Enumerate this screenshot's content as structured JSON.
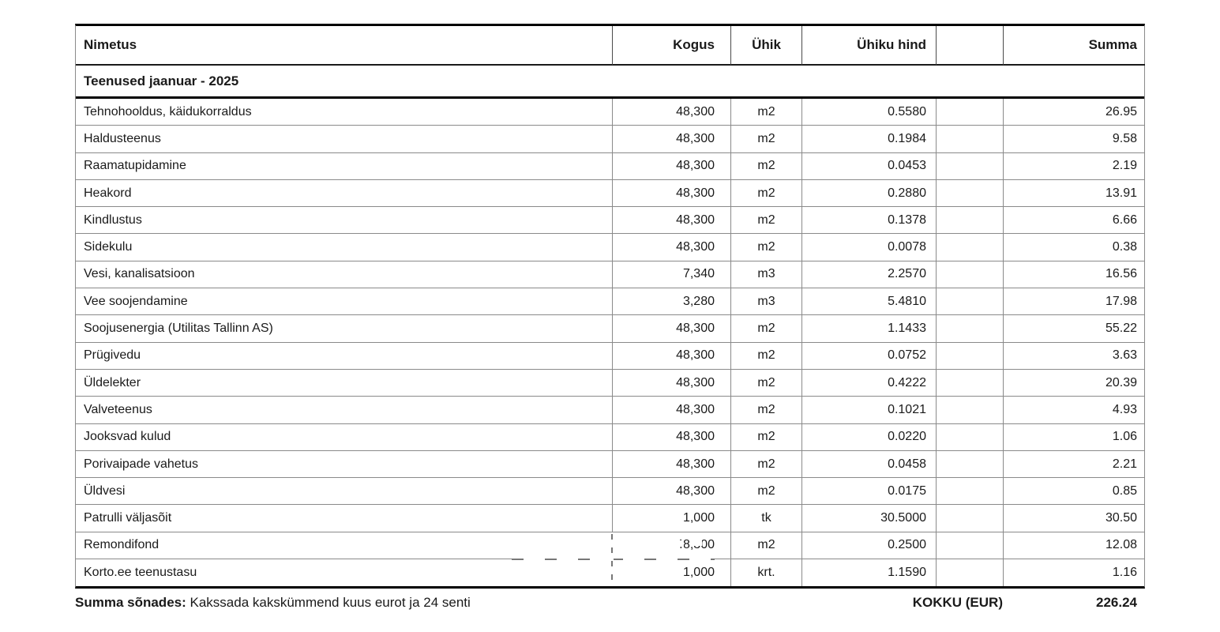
{
  "table": {
    "columns": [
      {
        "label": "Nimetus"
      },
      {
        "label": "Kogus"
      },
      {
        "label": "Ühik"
      },
      {
        "label": "Ühiku hind"
      },
      {
        "label": ""
      },
      {
        "label": "Summa"
      }
    ],
    "section_header": "Teenused jaanuar - 2025",
    "rows": [
      {
        "nimetus": "Tehnohooldus, käidukorraldus",
        "kogus": "48,300",
        "yhik": "m2",
        "yhiku_hind": "0.5580",
        "blank": "",
        "summa": "26.95"
      },
      {
        "nimetus": "Haldusteenus",
        "kogus": "48,300",
        "yhik": "m2",
        "yhiku_hind": "0.1984",
        "blank": "",
        "summa": "9.58"
      },
      {
        "nimetus": "Raamatupidamine",
        "kogus": "48,300",
        "yhik": "m2",
        "yhiku_hind": "0.0453",
        "blank": "",
        "summa": "2.19"
      },
      {
        "nimetus": "Heakord",
        "kogus": "48,300",
        "yhik": "m2",
        "yhiku_hind": "0.2880",
        "blank": "",
        "summa": "13.91"
      },
      {
        "nimetus": "Kindlustus",
        "kogus": "48,300",
        "yhik": "m2",
        "yhiku_hind": "0.1378",
        "blank": "",
        "summa": "6.66"
      },
      {
        "nimetus": "Sidekulu",
        "kogus": "48,300",
        "yhik": "m2",
        "yhiku_hind": "0.0078",
        "blank": "",
        "summa": "0.38"
      },
      {
        "nimetus": "Vesi, kanalisatsioon",
        "kogus": "7,340",
        "yhik": "m3",
        "yhiku_hind": "2.2570",
        "blank": "",
        "summa": "16.56"
      },
      {
        "nimetus": "Vee soojendamine",
        "kogus": "3,280",
        "yhik": "m3",
        "yhiku_hind": "5.4810",
        "blank": "",
        "summa": "17.98"
      },
      {
        "nimetus": "Soojusenergia (Utilitas Tallinn AS)",
        "kogus": "48,300",
        "yhik": "m2",
        "yhiku_hind": "1.1433",
        "blank": "",
        "summa": "55.22"
      },
      {
        "nimetus": "Prügivedu",
        "kogus": "48,300",
        "yhik": "m2",
        "yhiku_hind": "0.0752",
        "blank": "",
        "summa": "3.63"
      },
      {
        "nimetus": "Üldelekter",
        "kogus": "48,300",
        "yhik": "m2",
        "yhiku_hind": "0.4222",
        "blank": "",
        "summa": "20.39"
      },
      {
        "nimetus": "Valveteenus",
        "kogus": "48,300",
        "yhik": "m2",
        "yhiku_hind": "0.1021",
        "blank": "",
        "summa": "4.93"
      },
      {
        "nimetus": "Jooksvad kulud",
        "kogus": "48,300",
        "yhik": "m2",
        "yhiku_hind": "0.0220",
        "blank": "",
        "summa": "1.06"
      },
      {
        "nimetus": "Porivaipade vahetus",
        "kogus": "48,300",
        "yhik": "m2",
        "yhiku_hind": "0.0458",
        "blank": "",
        "summa": "2.21"
      },
      {
        "nimetus": "Üldvesi",
        "kogus": "48,300",
        "yhik": "m2",
        "yhiku_hind": "0.0175",
        "blank": "",
        "summa": "0.85"
      },
      {
        "nimetus": "Patrulli väljasõit",
        "kogus": "1,000",
        "yhik": "tk",
        "yhiku_hind": "30.5000",
        "blank": "",
        "summa": "30.50"
      },
      {
        "nimetus": "Remondifond",
        "kogus": "48,300",
        "yhik": "m2",
        "yhiku_hind": "0.2500",
        "blank": "",
        "summa": "12.08"
      },
      {
        "nimetus": "Korto.ee teenustasu",
        "kogus": "1,000",
        "yhik": "krt.",
        "yhiku_hind": "1.1590",
        "blank": "",
        "summa": "1.16"
      }
    ]
  },
  "footer": {
    "amount_in_words_label": "Summa sõnades:",
    "amount_in_words": "Kakssada kakskümmend kuus eurot ja 24 senti",
    "total_label": "KOKKU (EUR)",
    "total_value": "226.24"
  },
  "colors": {
    "background": "#ffffff",
    "text": "#1a1a1a",
    "border_heavy": "#000000",
    "border_light": "#8a8a8a"
  }
}
